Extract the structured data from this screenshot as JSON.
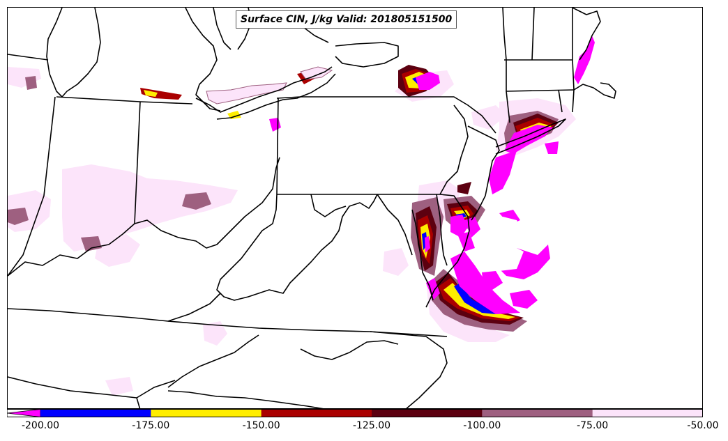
{
  "title": "Surface CIN, J/kg Valid: 201805151500",
  "colors": {
    "background": "#ffffff",
    "borders": "#000000",
    "extend_below": "#ff00ff"
  },
  "legend": {
    "type": "colorbar",
    "extend": "min",
    "ticks": [
      "-200.00",
      "-175.00",
      "-150.00",
      "-125.00",
      "-100.00",
      "-75.00",
      "-50.00"
    ],
    "bins": [
      {
        "range": "< -200",
        "color": "#ff00ff"
      },
      {
        "range": "-200 to -175",
        "color": "#0000ff"
      },
      {
        "range": "-175 to -150",
        "color": "#ffee00"
      },
      {
        "range": "-150 to -125",
        "color": "#aa0000"
      },
      {
        "range": "-125 to -100",
        "color": "#5c0010"
      },
      {
        "range": "-100 to -75",
        "color": "#9e6080"
      },
      {
        "range": "-75 to -50",
        "color": "#fce4fa"
      }
    ]
  },
  "map": {
    "region": "Eastern United States / Mid-Atlantic",
    "field": "Surface CIN",
    "units": "J/kg",
    "valid": "201805151500"
  }
}
